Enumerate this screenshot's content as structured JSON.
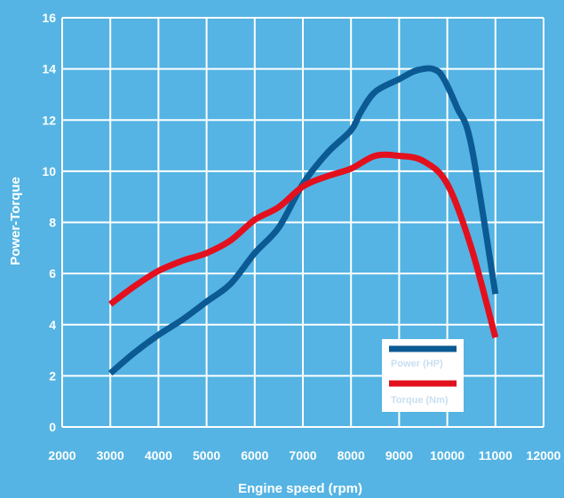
{
  "chart_data": {
    "type": "line",
    "title": "",
    "xlabel": "Engine speed (rpm)",
    "ylabel": "Power-Torque",
    "xlim": [
      2000,
      12000
    ],
    "ylim": [
      0,
      16
    ],
    "xticks": [
      "2000",
      "3000",
      "4000",
      "5000",
      "6000",
      "7000",
      "8000",
      "9000",
      "10000",
      "11000",
      "12000"
    ],
    "yticks": [
      "0",
      "2",
      "4",
      "6",
      "8",
      "10",
      "12",
      "14",
      "16"
    ],
    "grid": true,
    "legend_position": "bottom-right",
    "series": [
      {
        "name": "Power (HP)",
        "color": "#0b5a94",
        "x": [
          3000,
          3500,
          4000,
          4500,
          5000,
          5500,
          6000,
          6500,
          7000,
          7500,
          8000,
          8200,
          8500,
          9000,
          9300,
          9500,
          9700,
          9900,
          10200,
          10500,
          11000
        ],
        "y": [
          2.1,
          2.9,
          3.6,
          4.2,
          4.9,
          5.6,
          6.8,
          7.8,
          9.5,
          10.7,
          11.6,
          12.3,
          13.1,
          13.6,
          13.9,
          14.0,
          14.0,
          13.7,
          12.5,
          11.0,
          5.2
        ]
      },
      {
        "name": "Torque (Nm)",
        "color": "#e3101e",
        "x": [
          3000,
          3500,
          4000,
          4500,
          5000,
          5500,
          6000,
          6500,
          7000,
          7500,
          8000,
          8500,
          9000,
          9500,
          10000,
          10500,
          11000
        ],
        "y": [
          4.8,
          5.5,
          6.1,
          6.5,
          6.8,
          7.3,
          8.1,
          8.6,
          9.4,
          9.8,
          10.1,
          10.6,
          10.6,
          10.4,
          9.5,
          7.0,
          3.5
        ]
      }
    ]
  }
}
